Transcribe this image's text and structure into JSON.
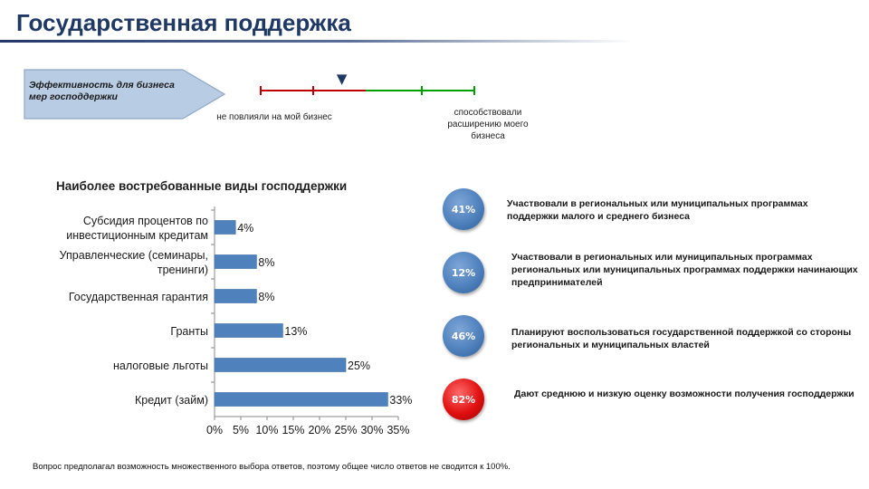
{
  "page_title": "Государственная поддержка",
  "effectiveness": {
    "label": "Эффективность для бизнеса мер господдержки",
    "left_label": "не повлияли на мой бизнес",
    "right_label": "способствовали расширению моего бизнеса",
    "marker_symbol": "▼",
    "marker_fraction": 0.38,
    "colors": {
      "negative": "#c00000",
      "positive": "#00a000",
      "marker": "#1f3864"
    }
  },
  "chart_data": {
    "type": "bar",
    "orientation": "horizontal",
    "title": "Наиболее востребованные виды господдержки",
    "categories": [
      "Субсидия процентов по инвестиционным кредитам",
      "Управленческие (семинары, тренинги)",
      "Государственная гарантия",
      "Гранты",
      "налоговые льготы",
      "Кредит (займ)"
    ],
    "category_lines": [
      [
        "Субсидия процентов по",
        "инвестиционным кредитам"
      ],
      [
        "Управленческие (семинары,",
        "тренинги)"
      ],
      [
        "Государственная гарантия"
      ],
      [
        "Гранты"
      ],
      [
        "налоговые льготы"
      ],
      [
        "Кредит (займ)"
      ]
    ],
    "values": [
      4,
      8,
      8,
      13,
      25,
      33
    ],
    "value_labels": [
      "4%",
      "8%",
      "8%",
      "13%",
      "25%",
      "33%"
    ],
    "xlim": [
      0,
      35
    ],
    "x_ticks": [
      "0%",
      "5%",
      "10%",
      "15%",
      "20%",
      "25%",
      "30%",
      "35%"
    ],
    "grid": false,
    "bar_color": "#4f81bd"
  },
  "stats": [
    {
      "value": "41%",
      "color": "blue",
      "text": "Участвовали в региональных или муниципальных программах поддержки малого и среднего бизнеса"
    },
    {
      "value": "12%",
      "color": "blue",
      "text": "Участвовали в региональных или муниципальных программах региональных или муниципальных программах поддержки начинающих предпринимателей"
    },
    {
      "value": "46%",
      "color": "blue",
      "text": "Планируют воспользоваться государственной поддержкой со стороны региональных и муниципальных властей"
    },
    {
      "value": "82%",
      "color": "red",
      "text": "Дают среднюю и низкую оценку возможности получения господдержки"
    }
  ],
  "footnote": "Вопрос предполагал возможность множественного выбора ответов, поэтому общее число ответов не сводится к 100%."
}
